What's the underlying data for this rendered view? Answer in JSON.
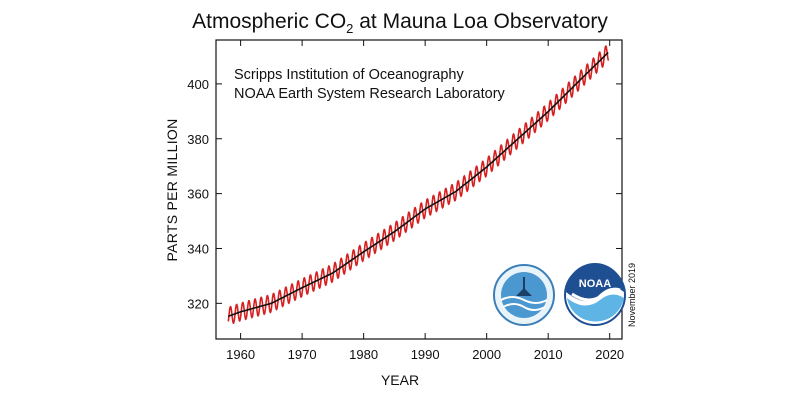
{
  "chart_data": {
    "type": "line",
    "title": "Atmospheric CO",
    "title_sub": "2",
    "title_suffix": " at Mauna Loa Observatory",
    "xlabel": "YEAR",
    "ylabel": "PARTS PER MILLION",
    "annotations": [
      "Scripps Institution of Oceanography",
      "NOAA Earth System Research Laboratory",
      "November 2019"
    ],
    "xlim": [
      1956,
      2022
    ],
    "ylim": [
      307,
      416
    ],
    "xticks": [
      1960,
      1970,
      1980,
      1990,
      2000,
      2010,
      2020
    ],
    "yticks": [
      320,
      340,
      360,
      380,
      400
    ],
    "grid": false,
    "seasonal_amplitude_ppm": 3.2,
    "series": [
      {
        "color": "#d62020",
        "style": "monthly (seasonal cycle)",
        "x": [
          1958,
          1960,
          1965,
          1970,
          1975,
          1980,
          1985,
          1990,
          1995,
          2000,
          2005,
          2010,
          2015,
          2019.8
        ],
        "y": [
          315.3,
          316.9,
          320.0,
          325.7,
          331.1,
          338.8,
          346.1,
          354.4,
          360.8,
          369.7,
          379.8,
          389.9,
          401.0,
          411.5
        ]
      },
      {
        "color": "#111111",
        "style": "annual mean",
        "x": [
          1958,
          1960,
          1965,
          1970,
          1975,
          1980,
          1985,
          1990,
          1995,
          2000,
          2005,
          2010,
          2015,
          2019.8
        ],
        "y": [
          315.3,
          316.9,
          320.0,
          325.7,
          331.1,
          338.8,
          346.1,
          354.4,
          360.8,
          369.7,
          379.8,
          389.9,
          401.0,
          411.5
        ]
      }
    ]
  },
  "logos": [
    {
      "name": "Scripps logo"
    },
    {
      "name": "NOAA",
      "text": "NOAA"
    }
  ]
}
